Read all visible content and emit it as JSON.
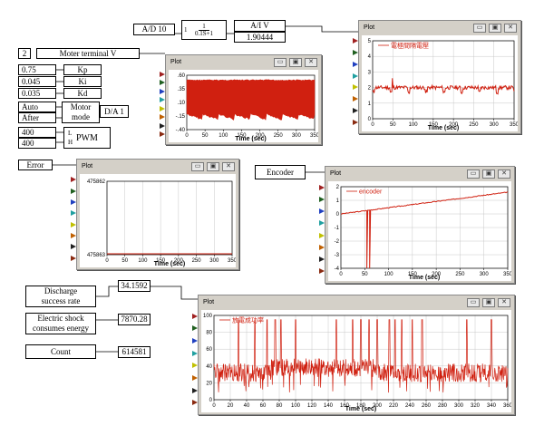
{
  "blocks": {
    "ad": "A/D 10",
    "tf_num": "1",
    "tf_den": "0.1S+1",
    "tf_prefix": "1",
    "aiv": "A/I V",
    "aiv_value": "1.90444",
    "motor_const": "2",
    "motor_terminal": "Moter terminal V",
    "kp_val": "0.75",
    "kp": "Kp",
    "ki_val": "0.045",
    "ki": "Ki",
    "kd_val": "0.035",
    "kd": "Kd",
    "mode_auto": "Auto",
    "mode_after": "After",
    "motor_mode_1": "Motor",
    "motor_mode_2": "mode",
    "da": "D/A 1",
    "pwm_l": "400",
    "pwm_h": "400",
    "pwm_L": "L",
    "pwm_H": "H",
    "pwm": "PWM",
    "error": "Error",
    "encoder": "Encoder",
    "discharge_1": "Discharge",
    "discharge_2": "success rate",
    "discharge_value": "34.1592",
    "shock_1": "Electric shock",
    "shock_2": "consumes energy",
    "shock_value": "7870.28",
    "count": "Count",
    "count_value": "614581"
  },
  "window": {
    "title": "Plot",
    "btn_min": "▭",
    "btn_max": "▣",
    "btn_close": "✕"
  },
  "plots": {
    "p1": {
      "xlabel": "Time (sec)",
      "xticks": [
        "0",
        "50",
        "100",
        "150",
        "200",
        "250",
        "300",
        "350"
      ],
      "yticks": [
        ".60",
        ".35",
        ".10",
        "-.15",
        "-.40"
      ]
    },
    "p2": {
      "legend": "電極間隔電壓",
      "xlabel": "Time (sec)",
      "xticks": [
        "0",
        "50",
        "100",
        "150",
        "200",
        "250",
        "300",
        "350"
      ],
      "yticks": [
        "5",
        "4",
        "3",
        "2",
        "1",
        "0"
      ]
    },
    "p3": {
      "xlabel": "Time (sec)",
      "xticks": [
        "0",
        "50",
        "100",
        "150",
        "200",
        "250",
        "300",
        "350"
      ],
      "yticks": [
        "475862",
        "475863"
      ]
    },
    "p4": {
      "legend": "encoder",
      "xlabel": "Time (sec)",
      "xticks": [
        "0",
        "50",
        "100",
        "150",
        "200",
        "250",
        "300",
        "350"
      ],
      "yticks": [
        "2",
        "1",
        "0",
        "-1",
        "-2",
        "-3",
        "-4"
      ]
    },
    "p5": {
      "legend": "放電成功率",
      "xlabel": "Time (sec)",
      "xticks": [
        "0",
        "20",
        "40",
        "60",
        "80",
        "100",
        "120",
        "140",
        "160",
        "180",
        "200",
        "220",
        "240",
        "260",
        "280",
        "300",
        "320",
        "340",
        "360"
      ],
      "yticks": [
        "100",
        "80",
        "60",
        "40",
        "20",
        "0"
      ]
    }
  },
  "colors": {
    "trace": "#d02010"
  }
}
